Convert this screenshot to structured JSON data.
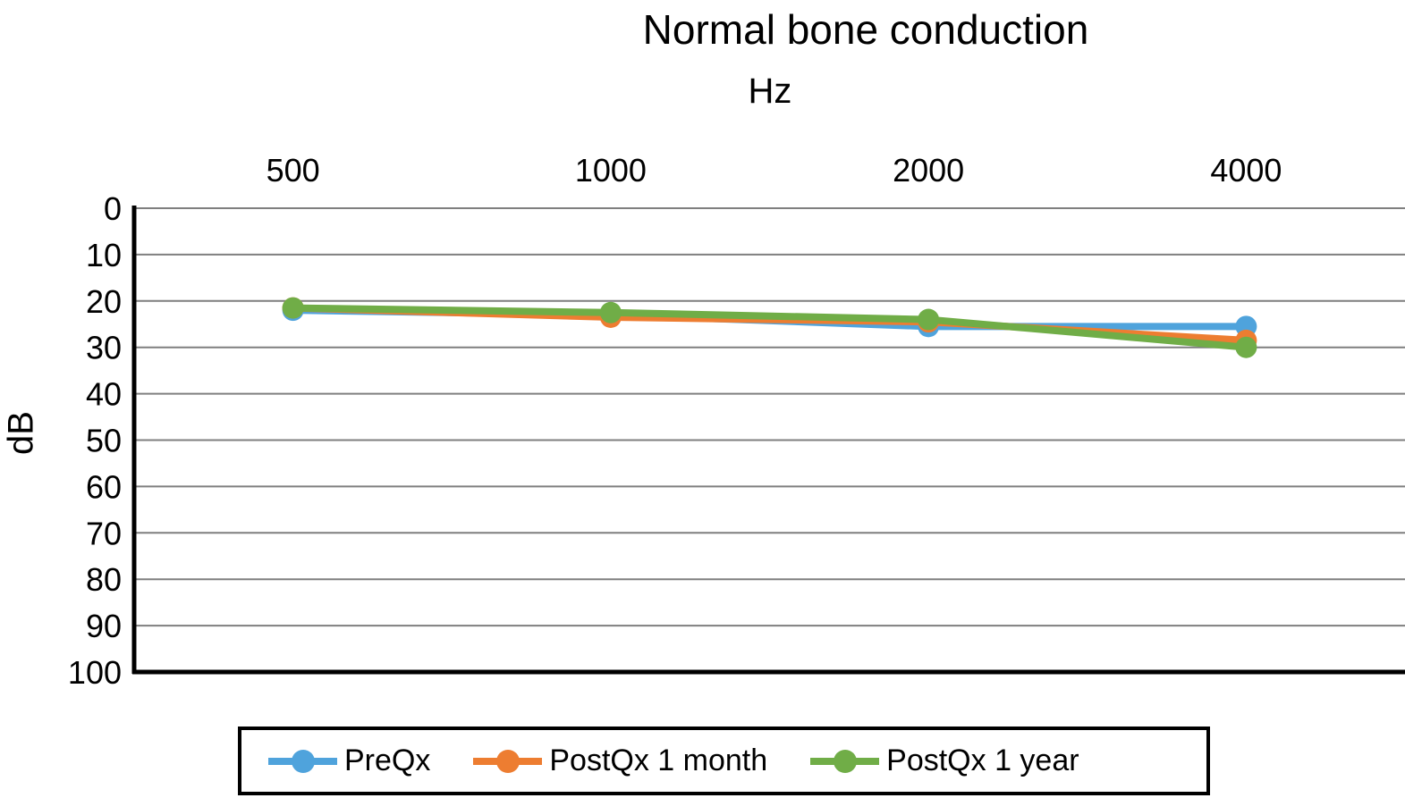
{
  "title": "Normal bone conduction",
  "x_axis_title": "Hz",
  "y_axis_title": "dB",
  "chart_data": {
    "type": "line",
    "categories": [
      "500",
      "1000",
      "2000",
      "4000"
    ],
    "series": [
      {
        "name": "PreQx",
        "color": "#4FA3DC",
        "values": [
          22,
          23,
          25.5,
          25.5
        ]
      },
      {
        "name": "PostQx 1 month",
        "color": "#ED7D31",
        "values": [
          21.5,
          23.5,
          24.5,
          28.5
        ]
      },
      {
        "name": "PostQx 1 year",
        "color": "#70AD47",
        "values": [
          21.5,
          22.5,
          24,
          30
        ]
      }
    ],
    "xlabel": "Hz",
    "ylabel": "dB",
    "y_ticks": [
      0,
      10,
      20,
      30,
      40,
      50,
      60,
      70,
      80,
      90,
      100
    ],
    "ylim": [
      0,
      100
    ],
    "y_axis_inverted": true,
    "grid": true,
    "legend_position": "bottom"
  },
  "colors": {
    "gridline": "#7F7F7F",
    "axis": "#000000",
    "text": "#000000",
    "background": "#FFFFFF"
  }
}
